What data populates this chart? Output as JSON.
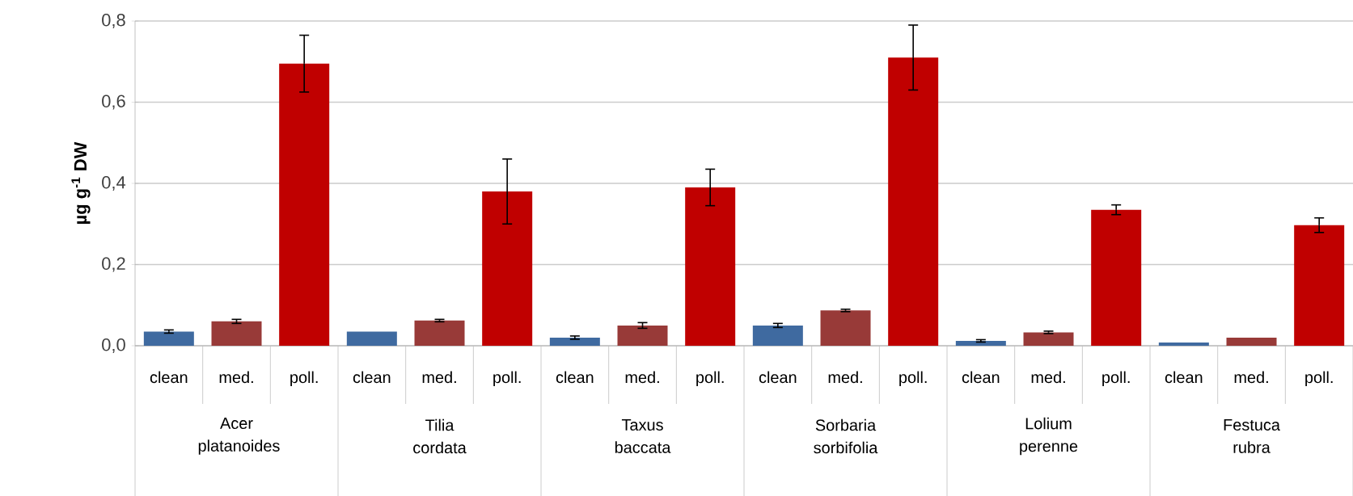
{
  "chart_data": {
    "type": "bar",
    "ylabel": "µg g$^{-1}$ DW",
    "categories": [
      "clean",
      "med.",
      "poll.",
      "clean",
      "med.",
      "poll.",
      "clean",
      "med.",
      "poll.",
      "clean",
      "med.",
      "poll.",
      "clean",
      "med.",
      "poll.",
      "clean",
      "med.",
      "poll."
    ],
    "values": [
      0.035,
      0.06,
      0.695,
      0.035,
      0.062,
      0.38,
      0.02,
      0.05,
      0.39,
      0.05,
      0.087,
      0.71,
      0.012,
      0.033,
      0.335,
      0.008,
      0.02,
      0.297
    ],
    "errors": [
      0.004,
      0.005,
      0.07,
      null,
      0.003,
      0.08,
      0.004,
      0.007,
      0.045,
      0.005,
      0.003,
      0.08,
      0.003,
      0.003,
      0.012,
      null,
      null,
      0.018
    ],
    "colors": [
      "#3f6aa0",
      "#983a38",
      "#c00000",
      "#3f6aa0",
      "#983a38",
      "#c00000",
      "#3f6aa0",
      "#983a38",
      "#c00000",
      "#3f6aa0",
      "#983a38",
      "#c00000",
      "#3f6aa0",
      "#983a38",
      "#c00000",
      "#3f6aa0",
      "#983a38",
      "#c00000"
    ],
    "annotations": [
      "Acer platanoides",
      "Tilia cordata",
      "Taxus baccata",
      "Sorbaria sorbifolia",
      "Lolium perenne",
      "Festuca rubra"
    ],
    "ylim": [
      0,
      0.8
    ],
    "yticks": [
      {
        "value": 0,
        "label": "0,0"
      },
      {
        "value": 0.2,
        "label": "0,2"
      },
      {
        "value": 0.4,
        "label": "0,4"
      },
      {
        "value": 0.6,
        "label": "0,6"
      },
      {
        "value": 0.8,
        "label": "0,8"
      }
    ],
    "grid": "y"
  }
}
